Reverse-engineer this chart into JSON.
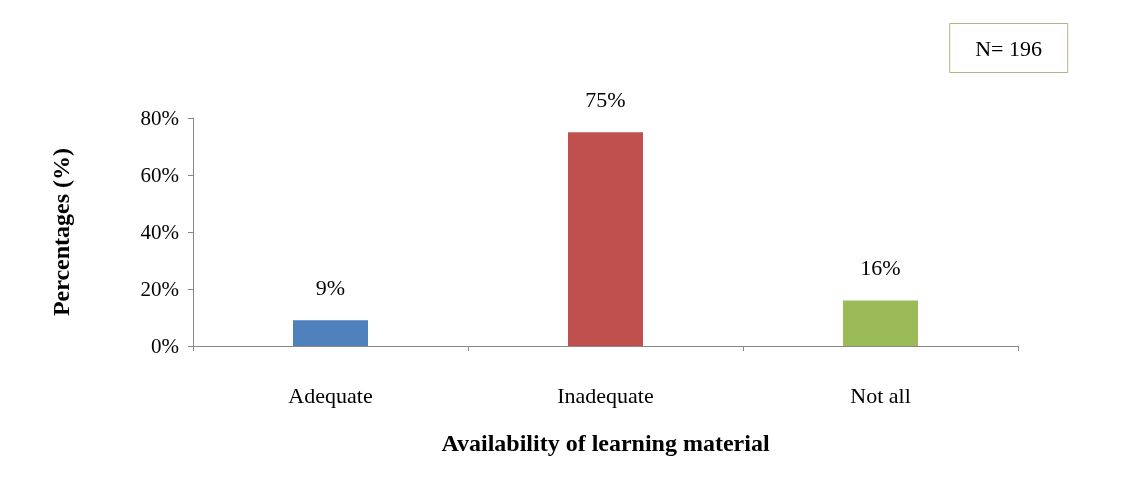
{
  "chart_data": {
    "type": "bar",
    "xlabel": "Availability of learning material",
    "ylabel": "Percentages (%)",
    "categories": [
      "Adequate",
      "Inadequate",
      "Not all"
    ],
    "values": [
      9,
      75,
      16
    ],
    "colors": [
      "#4f81bd",
      "#c0504d",
      "#9bbb59"
    ],
    "value_labels": [
      "9%",
      "75%",
      "16%"
    ],
    "ylim": [
      0,
      80
    ],
    "yticks": [
      {
        "value": 0,
        "label": "0%"
      },
      {
        "value": 20,
        "label": "20%"
      },
      {
        "value": 40,
        "label": "40%"
      },
      {
        "value": 60,
        "label": "60%"
      },
      {
        "value": 80,
        "label": "80%"
      }
    ],
    "grid": false,
    "annotations": [
      "N= 196"
    ]
  }
}
